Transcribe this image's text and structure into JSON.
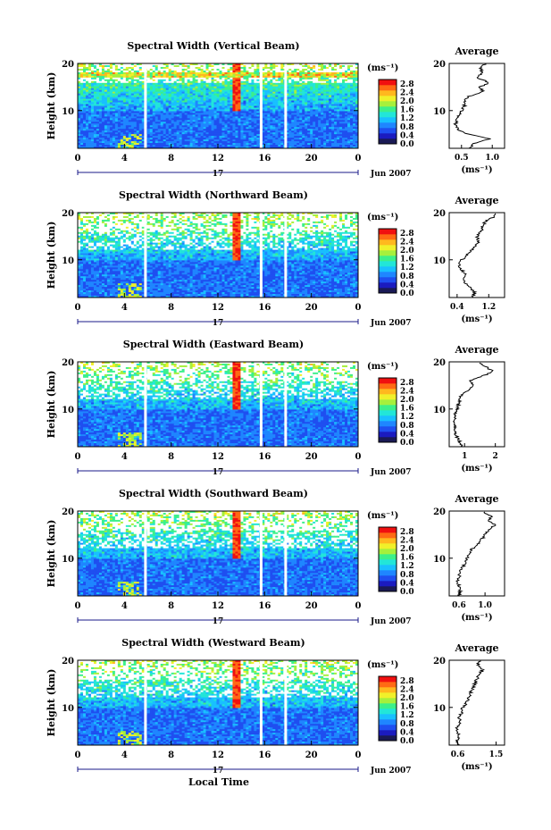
{
  "figure": {
    "xlabel": "Local Time",
    "date_label": "Jun 2007",
    "day_label": "17",
    "height_axis_label": "Height (km)",
    "avg_title": "Average",
    "colorbar_unit": "(ms⁻¹)",
    "avg_xlabel": "(ms⁻¹)"
  },
  "colors": {
    "colormap": [
      "#1a1a55",
      "#1b1bbf",
      "#1f4ff0",
      "#1f86ff",
      "#19c0ff",
      "#22e6d8",
      "#3cf08a",
      "#a6f03c",
      "#f0f02a",
      "#ffb81e",
      "#ff6a14",
      "#f01010"
    ],
    "gap_white": "#ffffff"
  },
  "chart_data": [
    {
      "type": "heatmap",
      "title": "Spectral Width (Vertical Beam)",
      "x_ticks": [
        "0",
        "4",
        "8",
        "12",
        "16",
        "20",
        "0"
      ],
      "xlim": [
        0,
        24
      ],
      "y_ticks": [
        "20",
        "10"
      ],
      "ylim": [
        2,
        20
      ],
      "colorbar_ticks": [
        "2.8",
        "2.4",
        "2.0",
        "1.6",
        "1.2",
        "0.8",
        "0.4",
        "0.0"
      ],
      "colorbar_range": [
        0.0,
        3.0
      ],
      "data_gaps_hours": [
        5.8,
        15.7,
        17.8
      ],
      "average_profile": {
        "x_ticks": [
          "0.5",
          "1.0"
        ],
        "xlim": [
          0.3,
          1.2
        ],
        "height": [
          2,
          3,
          4,
          5,
          6,
          7,
          8,
          9,
          10,
          11,
          12,
          13,
          14,
          15,
          16,
          17,
          18,
          19,
          20
        ],
        "values": [
          0.62,
          0.7,
          0.95,
          0.6,
          0.45,
          0.4,
          0.42,
          0.45,
          0.5,
          0.55,
          0.55,
          0.62,
          0.85,
          0.8,
          0.95,
          0.75,
          0.85,
          0.8,
          0.9
        ]
      }
    },
    {
      "type": "heatmap",
      "title": "Spectral Width (Northward Beam)",
      "x_ticks": [
        "0",
        "4",
        "8",
        "12",
        "16",
        "20",
        "0"
      ],
      "xlim": [
        0,
        24
      ],
      "y_ticks": [
        "20",
        "10"
      ],
      "ylim": [
        2,
        20
      ],
      "colorbar_ticks": [
        "2.8",
        "2.4",
        "2.0",
        "1.6",
        "1.2",
        "0.8",
        "0.4",
        "0.0"
      ],
      "colorbar_range": [
        0.0,
        3.0
      ],
      "data_gaps_hours": [
        5.8,
        15.7,
        17.8
      ],
      "average_profile": {
        "x_ticks": [
          "0.4",
          "1.2"
        ],
        "xlim": [
          0.2,
          1.6
        ],
        "height": [
          2,
          3,
          4,
          5,
          6,
          7,
          8,
          9,
          10,
          11,
          12,
          13,
          14,
          15,
          16,
          17,
          18,
          19,
          20
        ],
        "values": [
          0.78,
          0.85,
          0.75,
          0.6,
          0.55,
          0.6,
          0.5,
          0.45,
          0.52,
          0.65,
          0.75,
          0.85,
          0.95,
          0.9,
          1.0,
          1.05,
          1.1,
          1.3,
          1.4
        ]
      }
    },
    {
      "type": "heatmap",
      "title": "Spectral Width (Eastward Beam)",
      "x_ticks": [
        "0",
        "4",
        "8",
        "12",
        "16",
        "20",
        "0"
      ],
      "xlim": [
        0,
        24
      ],
      "y_ticks": [
        "20",
        "10"
      ],
      "ylim": [
        2,
        20
      ],
      "colorbar_ticks": [
        "2.8",
        "2.4",
        "2.0",
        "1.6",
        "1.2",
        "0.8",
        "0.4",
        "0.0"
      ],
      "colorbar_range": [
        0.0,
        3.0
      ],
      "data_gaps_hours": [
        5.8,
        15.7,
        17.8
      ],
      "average_profile": {
        "x_ticks": [
          "1",
          "2"
        ],
        "xlim": [
          0.5,
          2.3
        ],
        "height": [
          2,
          3,
          4,
          5,
          6,
          7,
          8,
          9,
          10,
          11,
          12,
          13,
          14,
          15,
          16,
          17,
          18,
          19,
          20
        ],
        "values": [
          0.95,
          0.85,
          0.75,
          0.7,
          0.7,
          0.68,
          0.68,
          0.7,
          0.75,
          0.8,
          0.85,
          0.9,
          1.1,
          1.3,
          1.2,
          1.6,
          1.9,
          1.7,
          1.4
        ]
      }
    },
    {
      "type": "heatmap",
      "title": "Spectral Width (Southward Beam)",
      "x_ticks": [
        "0",
        "4",
        "8",
        "12",
        "16",
        "20",
        "0"
      ],
      "xlim": [
        0,
        24
      ],
      "y_ticks": [
        "20",
        "10"
      ],
      "ylim": [
        2,
        20
      ],
      "colorbar_ticks": [
        "2.8",
        "2.4",
        "2.0",
        "1.6",
        "1.2",
        "0.8",
        "0.4",
        "0.0"
      ],
      "colorbar_range": [
        0.0,
        3.0
      ],
      "data_gaps_hours": [
        5.8,
        15.7,
        17.8
      ],
      "average_profile": {
        "x_ticks": [
          "0.6",
          "1.0"
        ],
        "xlim": [
          0.45,
          1.3
        ],
        "height": [
          2,
          3,
          4,
          5,
          6,
          7,
          8,
          9,
          10,
          11,
          12,
          13,
          14,
          15,
          16,
          17,
          18,
          19,
          20
        ],
        "values": [
          0.6,
          0.62,
          0.6,
          0.58,
          0.6,
          0.62,
          0.65,
          0.7,
          0.72,
          0.75,
          0.8,
          0.9,
          0.95,
          1.0,
          1.05,
          1.15,
          1.05,
          1.1,
          0.95
        ]
      }
    },
    {
      "type": "heatmap",
      "title": "Spectral Width (Westward Beam)",
      "x_ticks": [
        "0",
        "4",
        "8",
        "12",
        "16",
        "20",
        "0"
      ],
      "xlim": [
        0,
        24
      ],
      "y_ticks": [
        "20",
        "10"
      ],
      "ylim": [
        2,
        20
      ],
      "colorbar_ticks": [
        "2.8",
        "2.4",
        "2.0",
        "1.6",
        "1.2",
        "0.8",
        "0.4",
        "0.0"
      ],
      "colorbar_range": [
        0.0,
        3.0
      ],
      "data_gaps_hours": [
        5.8,
        15.7,
        17.8
      ],
      "average_profile": {
        "x_ticks": [
          "0.6",
          "1.5"
        ],
        "xlim": [
          0.4,
          1.7
        ],
        "height": [
          2,
          3,
          4,
          5,
          6,
          7,
          8,
          9,
          10,
          11,
          12,
          13,
          14,
          15,
          16,
          17,
          18,
          19,
          20
        ],
        "values": [
          0.62,
          0.6,
          0.62,
          0.58,
          0.6,
          0.65,
          0.62,
          0.7,
          0.72,
          0.8,
          0.85,
          0.9,
          0.95,
          1.0,
          1.05,
          1.1,
          1.2,
          1.05,
          1.15
        ]
      }
    }
  ]
}
